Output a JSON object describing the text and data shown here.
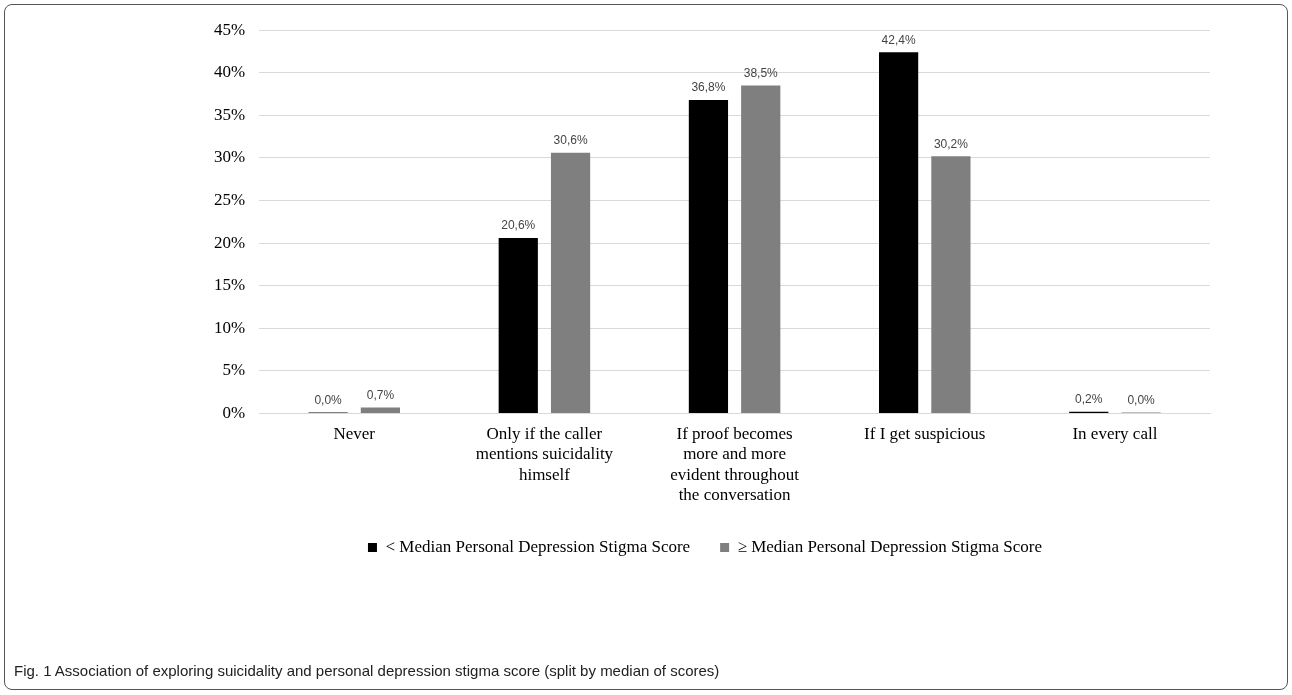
{
  "chart_data": {
    "type": "bar",
    "categories": [
      "Never",
      "Only if the caller mentions suicidality himself",
      "If proof becomes more and more evident throughout the conversation",
      "If I get suspicious",
      "In every call"
    ],
    "series": [
      {
        "name": "< Median Personal Depression Stigma Score",
        "color": "#000000",
        "values": [
          0.0,
          20.6,
          36.8,
          42.4,
          0.2
        ],
        "value_labels": [
          "0,0%",
          "20,6%",
          "36,8%",
          "42,4%",
          "0,2%"
        ]
      },
      {
        "name": "≥ Median Personal Depression Stigma Score",
        "color": "#7f7f7f",
        "values": [
          0.7,
          30.6,
          38.5,
          30.2,
          0.0
        ],
        "value_labels": [
          "0,7%",
          "30,6%",
          "38,5%",
          "30,2%",
          "0,0%"
        ]
      }
    ],
    "ylim": [
      0,
      45
    ],
    "yticks": [
      {
        "value": 0,
        "label": "0%"
      },
      {
        "value": 5,
        "label": "5%"
      },
      {
        "value": 10,
        "label": "10%"
      },
      {
        "value": 15,
        "label": "15%"
      },
      {
        "value": 20,
        "label": "20%"
      },
      {
        "value": 25,
        "label": "25%"
      },
      {
        "value": 30,
        "label": "30%"
      },
      {
        "value": 35,
        "label": "35%"
      },
      {
        "value": 40,
        "label": "40%"
      },
      {
        "value": 45,
        "label": "45%"
      }
    ],
    "grid": "y",
    "legend": "bottom",
    "annotations": [
      "Fig. 1 Association of exploring suicidality and personal depression stigma score (split by median of scores)"
    ]
  }
}
